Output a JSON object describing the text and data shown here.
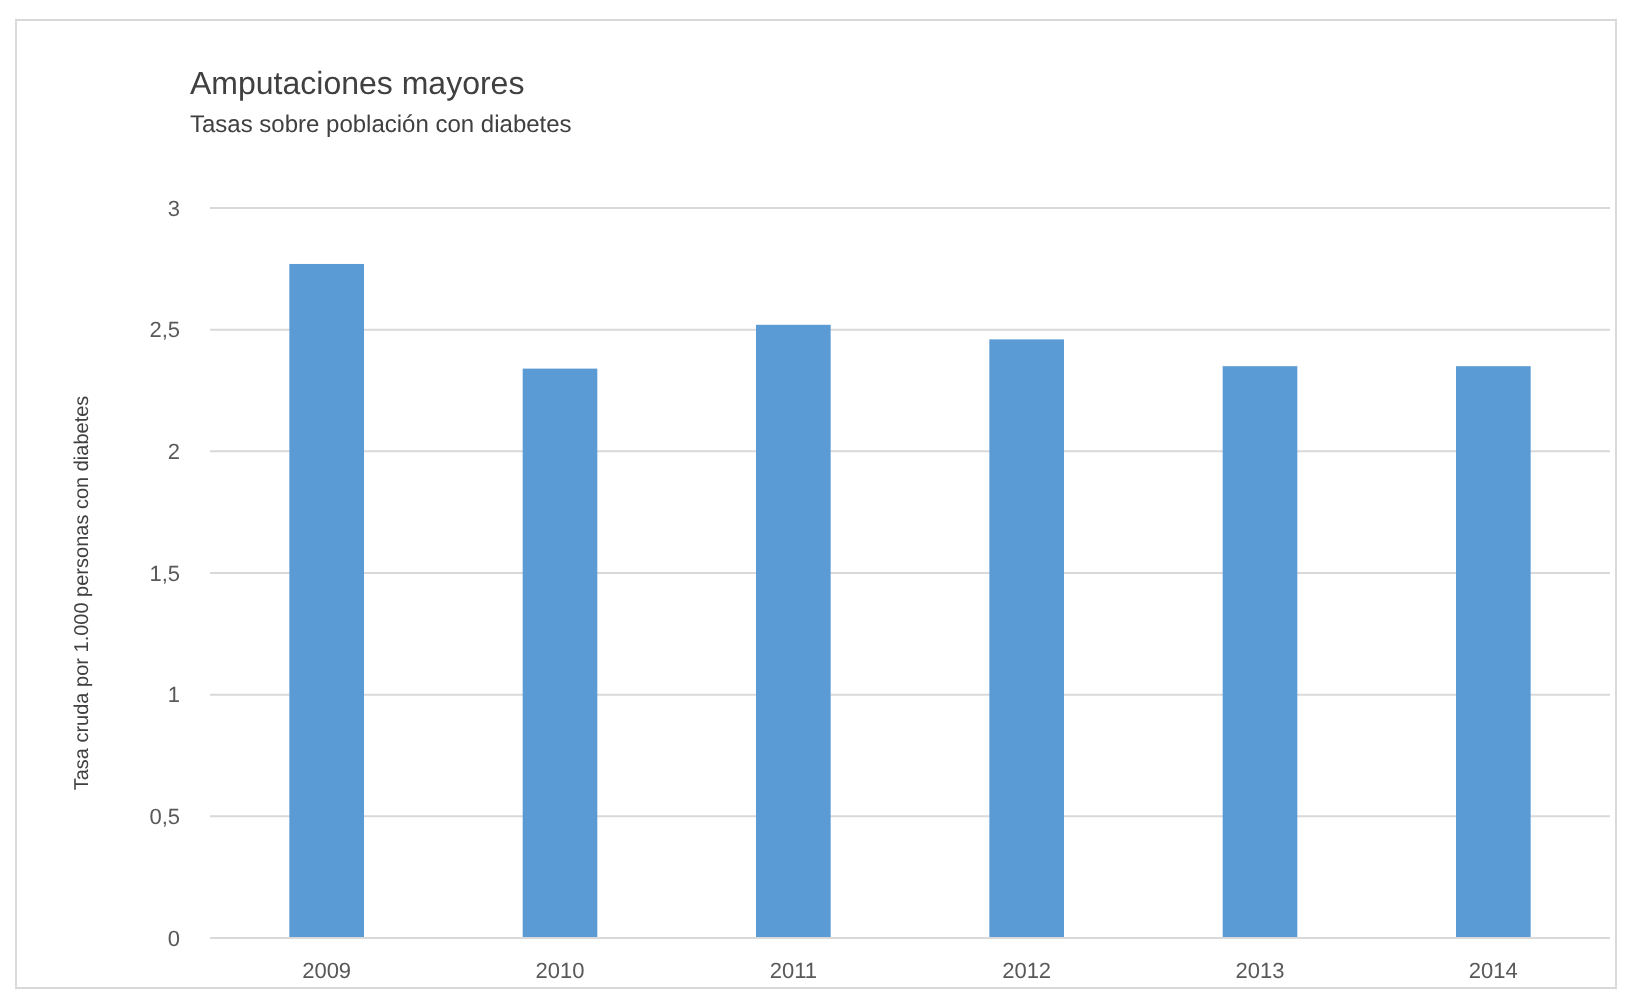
{
  "chart_data": {
    "type": "bar",
    "title": "Amputaciones mayores",
    "subtitle": "Tasas sobre población con diabetes",
    "ylabel": "Tasa cruda por 1.000 personas con diabetes",
    "categories": [
      "2009",
      "2010",
      "2011",
      "2012",
      "2013",
      "2014"
    ],
    "values": [
      2.77,
      2.34,
      2.52,
      2.46,
      2.35,
      2.35
    ],
    "color": "#5b9bd5",
    "ylim": [
      0,
      3
    ],
    "yticks": [
      0,
      {
        "value": 0.5,
        "label": "0,5"
      },
      1,
      {
        "value": 1.5,
        "label": "1,5"
      },
      2,
      {
        "value": 2.5,
        "label": "2,5"
      },
      3
    ],
    "grid": "y"
  }
}
